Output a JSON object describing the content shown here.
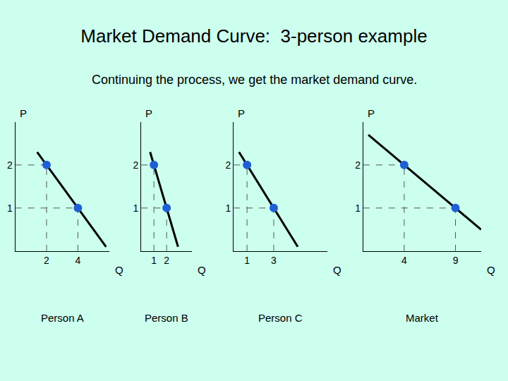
{
  "title": "Market Demand Curve:  3-person example",
  "subtitle": "Continuing the process, we get the market demand curve.",
  "chart_data": [
    {
      "type": "line",
      "title": "Person A",
      "xlabel": "Q",
      "ylabel": "P",
      "xlim": [
        0,
        6
      ],
      "ylim": [
        0,
        3
      ],
      "xticks": [
        2,
        4
      ],
      "yticks": [
        1,
        2
      ],
      "series": [
        {
          "type": "line",
          "color": "#000000",
          "x": [
            1.4,
            5.8
          ],
          "values": [
            2.3,
            0.1
          ]
        },
        {
          "type": "scatter",
          "marker": "circle",
          "color": "#1f5fd6",
          "x": [
            2,
            4
          ],
          "values": [
            2,
            1
          ]
        }
      ]
    },
    {
      "type": "line",
      "title": "Person B",
      "xlabel": "Q",
      "ylabel": "P",
      "xlim": [
        0,
        4
      ],
      "ylim": [
        0,
        3
      ],
      "xticks": [
        1,
        2
      ],
      "yticks": [
        1,
        2
      ],
      "series": [
        {
          "type": "line",
          "color": "#000000",
          "x": [
            0.7,
            2.9
          ],
          "values": [
            2.3,
            0.1
          ]
        },
        {
          "type": "scatter",
          "marker": "circle",
          "color": "#1f5fd6",
          "x": [
            1,
            2
          ],
          "values": [
            2,
            1
          ]
        }
      ]
    },
    {
      "type": "line",
      "title": "Person C",
      "xlabel": "Q",
      "ylabel": "P",
      "xlim": [
        0,
        7
      ],
      "ylim": [
        0,
        3
      ],
      "xticks": [
        1,
        3
      ],
      "yticks": [
        1,
        2
      ],
      "series": [
        {
          "type": "line",
          "color": "#000000",
          "x": [
            0.4,
            4.8
          ],
          "values": [
            2.3,
            0.1
          ]
        },
        {
          "type": "scatter",
          "marker": "circle",
          "color": "#1f5fd6",
          "x": [
            1,
            3
          ],
          "values": [
            2,
            1
          ]
        }
      ]
    },
    {
      "type": "line",
      "title": "Market",
      "xlabel": "Q",
      "ylabel": "P",
      "xlim": [
        0,
        11.5
      ],
      "ylim": [
        0,
        3
      ],
      "xticks": [
        4,
        9
      ],
      "yticks": [
        1,
        2
      ],
      "series": [
        {
          "type": "line",
          "color": "#000000",
          "x": [
            0.5,
            11.5
          ],
          "values": [
            2.7,
            0.5
          ]
        },
        {
          "type": "scatter",
          "marker": "circle",
          "color": "#1f5fd6",
          "x": [
            4,
            9
          ],
          "values": [
            2,
            1
          ]
        }
      ]
    }
  ]
}
